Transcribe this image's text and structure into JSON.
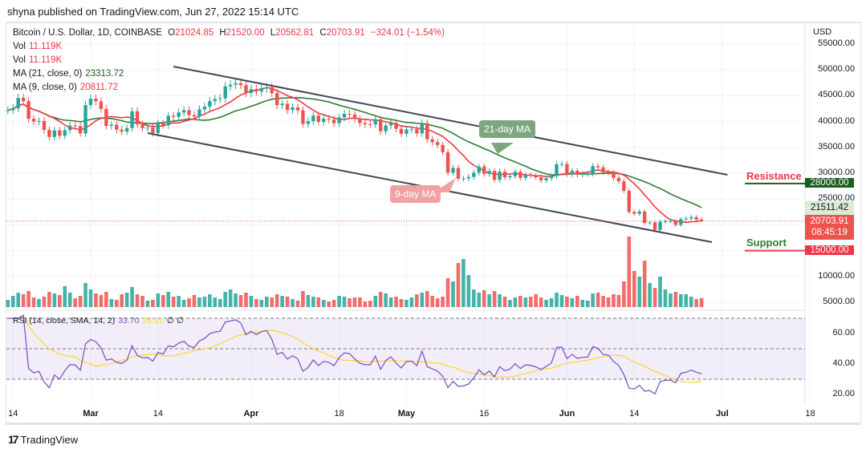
{
  "header": {
    "published": "shyna published on TradingView.com, Jun 27, 2022 15:14 UTC"
  },
  "legend": {
    "symbol": "Bitcoin / U.S. Dollar, 1D, COINBASE",
    "o_label": "O",
    "o": "21024.85",
    "h_label": "H",
    "h": "21520.00",
    "l_label": "L",
    "l": "20562.81",
    "c_label": "C",
    "c": "20703.91",
    "change": "−324.01 (−1.54%)",
    "vol1_label": "Vol",
    "vol1": "11.119K",
    "vol2_label": "Vol",
    "vol2": "11.119K",
    "ma21_label": "MA (21, close, 0)",
    "ma21": "23313.72",
    "ma9_label": "MA (9, close, 0)",
    "ma9": "20811.72",
    "rsi_label": "RSI (14, close, SMA, 14, 2)",
    "rsi": "33.70",
    "rsi_sma": "28.81",
    "rsi_extra": "∅ ∅"
  },
  "price_axis": {
    "currency": "USD",
    "ticks": [
      "55000.00",
      "50000.00",
      "45000.00",
      "40000.00",
      "35000.00",
      "30000.00",
      "25000.00",
      "10000.00",
      "5000.00"
    ],
    "tags": {
      "resistance": "28000.00",
      "ma_tag": "21511.42",
      "last": "20703.91",
      "countdown": "08:45:19",
      "support": "15000.00"
    }
  },
  "rsi_axis": {
    "ticks": [
      "60.00",
      "40.00",
      "20.00"
    ]
  },
  "time_axis": {
    "ticks": [
      {
        "label": "14",
        "bold": false
      },
      {
        "label": "Mar",
        "bold": true
      },
      {
        "label": "14",
        "bold": false
      },
      {
        "label": "Apr",
        "bold": true
      },
      {
        "label": "18",
        "bold": false
      },
      {
        "label": "May",
        "bold": true
      },
      {
        "label": "16",
        "bold": false
      },
      {
        "label": "Jun",
        "bold": true
      },
      {
        "label": "14",
        "bold": false
      },
      {
        "label": "Jul",
        "bold": true
      },
      {
        "label": "18",
        "bold": false
      }
    ],
    "dates": [
      "2022-02-14",
      "2022-03-01",
      "2022-03-14",
      "2022-04-01",
      "2022-04-18",
      "2022-05-01",
      "2022-05-16",
      "2022-06-01",
      "2022-06-14",
      "2022-07-01",
      "2022-07-18"
    ]
  },
  "annotations": {
    "ma21_callout": "21-day MA",
    "ma9_callout": "9-day MA",
    "resistance": "Resistance",
    "support": "Support",
    "resistance_level": 28000,
    "support_level": 15000,
    "upper_channel": [
      [
        "2022-03-17",
        50650
      ],
      [
        "2022-07-02",
        29690
      ]
    ],
    "lower_channel": [
      [
        "2022-03-12",
        37760
      ],
      [
        "2022-06-29",
        16650
      ]
    ]
  },
  "colors": {
    "up": "#26a69a",
    "down": "#ef5350",
    "ma21": "#2e7d32",
    "ma9": "#f23645",
    "rsi": "#7e57c2",
    "rsi_sma": "#fdd835",
    "resistance_line": "#1b5e20",
    "support_line": "#f23645"
  },
  "chart_data": {
    "type": "candlestick",
    "start_date": "2022-02-13",
    "close": [
      42200,
      42590,
      44580,
      43960,
      40540,
      40000,
      40100,
      38380,
      37020,
      38270,
      37260,
      38330,
      39220,
      39110,
      37710,
      43190,
      44420,
      43920,
      42450,
      39150,
      39400,
      38420,
      38060,
      38740,
      41980,
      39440,
      38730,
      38810,
      37790,
      39670,
      39280,
      41120,
      40920,
      41760,
      42200,
      41260,
      41000,
      42360,
      42890,
      43960,
      44350,
      44500,
      46820,
      47130,
      47450,
      47060,
      45530,
      46280,
      45810,
      46410,
      46620,
      45500,
      43170,
      43440,
      42250,
      42750,
      42160,
      39530,
      40070,
      41150,
      39940,
      40550,
      40380,
      39680,
      40800,
      41500,
      41370,
      40480,
      39710,
      39470,
      39450,
      40430,
      38110,
      39240,
      39740,
      38600,
      37640,
      38470,
      38520,
      37720,
      39690,
      36550,
      36010,
      35470,
      34060,
      30080,
      31010,
      28930,
      28990,
      29280,
      30100,
      31300,
      29860,
      30420,
      28700,
      30300,
      29200,
      29430,
      30280,
      29100,
      29650,
      29540,
      29200,
      28630,
      29030,
      29450,
      31720,
      31790,
      29800,
      30450,
      29700,
      29860,
      29900,
      31370,
      31120,
      30200,
      30110,
      29090,
      28420,
      26580,
      22490,
      22140,
      22580,
      20380,
      20450,
      19020,
      20560,
      20700,
      20730,
      19980,
      21100,
      21230,
      21490,
      21030,
      20703.91
    ],
    "volume_k": [
      9,
      14,
      18,
      16,
      20,
      12,
      10,
      13,
      19,
      17,
      15,
      26,
      18,
      11,
      14,
      30,
      22,
      17,
      15,
      19,
      10,
      9,
      16,
      18,
      25,
      16,
      14,
      8,
      9,
      17,
      15,
      19,
      13,
      14,
      9,
      11,
      15,
      12,
      13,
      16,
      12,
      10,
      19,
      22,
      17,
      15,
      18,
      14,
      10,
      9,
      13,
      12,
      16,
      14,
      13,
      10,
      8,
      20,
      15,
      13,
      12,
      9,
      7,
      9,
      14,
      13,
      11,
      12,
      12,
      7,
      8,
      14,
      19,
      17,
      12,
      13,
      10,
      9,
      12,
      16,
      18,
      20,
      14,
      11,
      13,
      36,
      32,
      55,
      60,
      40,
      22,
      18,
      21,
      16,
      20,
      16,
      13,
      9,
      12,
      14,
      12,
      13,
      16,
      12,
      9,
      11,
      18,
      15,
      13,
      11,
      14,
      9,
      8,
      17,
      18,
      14,
      12,
      16,
      15,
      32,
      88,
      45,
      38,
      58,
      30,
      24,
      38,
      22,
      17,
      19,
      16,
      16,
      13,
      10,
      11.119
    ],
    "ylim": [
      3500,
      57000
    ],
    "rsi_ylim": [
      15,
      72
    ]
  }
}
